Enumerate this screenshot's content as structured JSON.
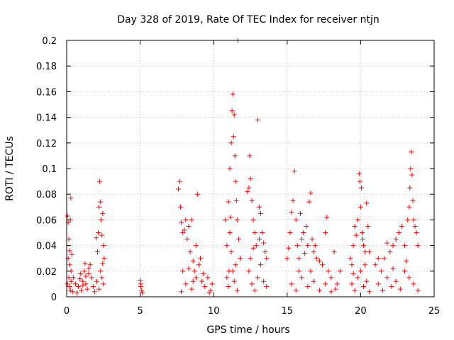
{
  "chart_data": {
    "type": "scatter",
    "title": "Day 328 of 2019, Rate Of TEC Index for receiver ntjn",
    "xlabel": "GPS time / hours",
    "ylabel": "ROTI / TECUs",
    "xlim": [
      0,
      25
    ],
    "ylim": [
      0,
      0.2
    ],
    "xticks": [
      0,
      5,
      10,
      15,
      20,
      25
    ],
    "yticks": [
      "0",
      "0.02",
      "0.04",
      "0.06",
      "0.08",
      "0.1",
      "0.12",
      "0.14",
      "0.16",
      "0.18",
      "0.2"
    ],
    "ytick_values": [
      0,
      0.02,
      0.04,
      0.06,
      0.08,
      0.1,
      0.12,
      0.14,
      0.16,
      0.18,
      0.2
    ],
    "grid": true,
    "marker": "plus",
    "color": "#ff0000",
    "series": [
      {
        "name": "ROTI",
        "points": [
          [
            0.05,
            0.063
          ],
          [
            0.1,
            0.058
          ],
          [
            0.15,
            0.045
          ],
          [
            0.2,
            0.036
          ],
          [
            0.25,
            0.06
          ],
          [
            0.3,
            0.02
          ],
          [
            0.1,
            0.03
          ],
          [
            0.15,
            0.015
          ],
          [
            0.2,
            0.008
          ],
          [
            0.25,
            0.005
          ],
          [
            0.05,
            0.01
          ],
          [
            0.3,
            0.012
          ],
          [
            0.35,
            0.033
          ],
          [
            0.28,
            0.077
          ],
          [
            0.2,
            0.025
          ],
          [
            0.4,
            0.004
          ],
          [
            0.45,
            0.015
          ],
          [
            0.6,
            0.01
          ],
          [
            0.8,
            0.008
          ],
          [
            0.9,
            0.014
          ],
          [
            1.0,
            0.005
          ],
          [
            1.1,
            0.012
          ],
          [
            1.2,
            0.02
          ],
          [
            1.3,
            0.01
          ],
          [
            1.4,
            0.006
          ],
          [
            1.5,
            0.018
          ],
          [
            1.6,
            0.025
          ],
          [
            1.7,
            0.015
          ],
          [
            1.8,
            0.008
          ],
          [
            1.9,
            0.004
          ],
          [
            1.5,
            0.022
          ],
          [
            1.3,
            0.016
          ],
          [
            1.1,
            0.009
          ],
          [
            0.7,
            0.003
          ],
          [
            0.95,
            0.018
          ],
          [
            1.25,
            0.026
          ],
          [
            2.0,
            0.046
          ],
          [
            2.1,
            0.035
          ],
          [
            2.15,
            0.05
          ],
          [
            2.2,
            0.07
          ],
          [
            2.25,
            0.09
          ],
          [
            2.3,
            0.074
          ],
          [
            2.35,
            0.06
          ],
          [
            2.4,
            0.048
          ],
          [
            2.45,
            0.065
          ],
          [
            2.5,
            0.04
          ],
          [
            2.55,
            0.03
          ],
          [
            2.3,
            0.02
          ],
          [
            2.4,
            0.015
          ],
          [
            2.5,
            0.01
          ],
          [
            2.2,
            0.006
          ],
          [
            2.45,
            0.026
          ],
          [
            2.05,
            0.012
          ],
          [
            5.0,
            0.013
          ],
          [
            5.05,
            0.008
          ],
          [
            5.1,
            0.005
          ],
          [
            5.15,
            0.003
          ],
          [
            5.05,
            0.01
          ],
          [
            7.6,
            0.084
          ],
          [
            7.7,
            0.09
          ],
          [
            7.75,
            0.07
          ],
          [
            7.8,
            0.058
          ],
          [
            7.9,
            0.05
          ],
          [
            8.0,
            0.052
          ],
          [
            8.1,
            0.06
          ],
          [
            8.2,
            0.045
          ],
          [
            8.3,
            0.055
          ],
          [
            8.4,
            0.035
          ],
          [
            8.5,
            0.06
          ],
          [
            8.6,
            0.028
          ],
          [
            8.7,
            0.02
          ],
          [
            8.8,
            0.015
          ],
          [
            8.9,
            0.08
          ],
          [
            9.0,
            0.025
          ],
          [
            9.2,
            0.012
          ],
          [
            9.4,
            0.008
          ],
          [
            9.6,
            0.015
          ],
          [
            9.8,
            0.005
          ],
          [
            9.9,
            0.01
          ],
          [
            8.1,
            0.01
          ],
          [
            8.5,
            0.006
          ],
          [
            7.8,
            0.004
          ],
          [
            9.1,
            0.03
          ],
          [
            8.8,
            0.04
          ],
          [
            7.9,
            0.02
          ],
          [
            8.3,
            0.022
          ],
          [
            9.3,
            0.018
          ],
          [
            9.7,
            0.003
          ],
          [
            8.6,
            0.012
          ],
          [
            10.8,
            0.06
          ],
          [
            10.9,
            0.04
          ],
          [
            11.0,
            0.074
          ],
          [
            11.05,
            0.02
          ],
          [
            11.1,
            0.1
          ],
          [
            11.15,
            0.062
          ],
          [
            11.2,
            0.12
          ],
          [
            11.25,
            0.145
          ],
          [
            11.3,
            0.158
          ],
          [
            11.35,
            0.125
          ],
          [
            11.4,
            0.142
          ],
          [
            11.45,
            0.11
          ],
          [
            11.5,
            0.09
          ],
          [
            11.55,
            0.075
          ],
          [
            11.6,
            0.06
          ],
          [
            11.65,
            0.2
          ],
          [
            11.7,
            0.045
          ],
          [
            11.8,
            0.03
          ],
          [
            11.3,
            0.02
          ],
          [
            11.0,
            0.008
          ],
          [
            11.4,
            0.012
          ],
          [
            11.6,
            0.005
          ],
          [
            11.2,
            0.035
          ],
          [
            11.5,
            0.025
          ],
          [
            11.1,
            0.05
          ],
          [
            10.9,
            0.015
          ],
          [
            12.3,
            0.082
          ],
          [
            12.4,
            0.085
          ],
          [
            12.45,
            0.11
          ],
          [
            12.5,
            0.092
          ],
          [
            12.6,
            0.075
          ],
          [
            12.7,
            0.06
          ],
          [
            12.8,
            0.05
          ],
          [
            12.9,
            0.04
          ],
          [
            13.0,
            0.138
          ],
          [
            13.1,
            0.07
          ],
          [
            13.2,
            0.065
          ],
          [
            13.3,
            0.05
          ],
          [
            13.4,
            0.042
          ],
          [
            13.5,
            0.035
          ],
          [
            13.6,
            0.03
          ],
          [
            12.4,
            0.02
          ],
          [
            12.6,
            0.01
          ],
          [
            12.8,
            0.005
          ],
          [
            13.0,
            0.015
          ],
          [
            13.2,
            0.025
          ],
          [
            13.4,
            0.012
          ],
          [
            13.6,
            0.008
          ],
          [
            12.5,
            0.03
          ],
          [
            13.1,
            0.045
          ],
          [
            12.7,
            0.038
          ],
          [
            15.0,
            0.03
          ],
          [
            15.1,
            0.038
          ],
          [
            15.2,
            0.05
          ],
          [
            15.3,
            0.066
          ],
          [
            15.4,
            0.075
          ],
          [
            15.5,
            0.098
          ],
          [
            15.6,
            0.06
          ],
          [
            15.7,
            0.04
          ],
          [
            15.8,
            0.03
          ],
          [
            15.9,
            0.065
          ],
          [
            16.0,
            0.045
          ],
          [
            16.1,
            0.05
          ],
          [
            16.2,
            0.034
          ],
          [
            16.3,
            0.055
          ],
          [
            16.4,
            0.04
          ],
          [
            16.5,
            0.074
          ],
          [
            16.6,
            0.081
          ],
          [
            16.7,
            0.045
          ],
          [
            16.8,
            0.035
          ],
          [
            16.9,
            0.04
          ],
          [
            17.0,
            0.03
          ],
          [
            17.2,
            0.028
          ],
          [
            17.4,
            0.025
          ],
          [
            17.6,
            0.05
          ],
          [
            17.7,
            0.062
          ],
          [
            17.8,
            0.02
          ],
          [
            18.0,
            0.015
          ],
          [
            18.2,
            0.035
          ],
          [
            18.4,
            0.01
          ],
          [
            18.6,
            0.02
          ],
          [
            15.3,
            0.01
          ],
          [
            15.6,
            0.005
          ],
          [
            16.0,
            0.015
          ],
          [
            16.4,
            0.008
          ],
          [
            16.8,
            0.012
          ],
          [
            17.2,
            0.005
          ],
          [
            17.6,
            0.01
          ],
          [
            18.0,
            0.004
          ],
          [
            18.3,
            0.006
          ],
          [
            15.8,
            0.02
          ],
          [
            16.6,
            0.02
          ],
          [
            19.3,
            0.03
          ],
          [
            19.4,
            0.025
          ],
          [
            19.5,
            0.04
          ],
          [
            19.6,
            0.055
          ],
          [
            19.7,
            0.048
          ],
          [
            19.8,
            0.06
          ],
          [
            19.9,
            0.096
          ],
          [
            19.95,
            0.09
          ],
          [
            20.0,
            0.07
          ],
          [
            20.05,
            0.085
          ],
          [
            20.1,
            0.05
          ],
          [
            20.15,
            0.045
          ],
          [
            20.2,
            0.04
          ],
          [
            20.3,
            0.035
          ],
          [
            20.4,
            0.073
          ],
          [
            20.5,
            0.055
          ],
          [
            20.6,
            0.035
          ],
          [
            19.4,
            0.01
          ],
          [
            19.6,
            0.005
          ],
          [
            19.8,
            0.015
          ],
          [
            20.0,
            0.02
          ],
          [
            20.2,
            0.008
          ],
          [
            20.4,
            0.012
          ],
          [
            20.6,
            0.004
          ],
          [
            19.5,
            0.018
          ],
          [
            20.3,
            0.025
          ],
          [
            21.0,
            0.025
          ],
          [
            21.2,
            0.03
          ],
          [
            21.4,
            0.02
          ],
          [
            21.6,
            0.03
          ],
          [
            21.8,
            0.042
          ],
          [
            22.0,
            0.035
          ],
          [
            22.2,
            0.04
          ],
          [
            22.4,
            0.045
          ],
          [
            22.6,
            0.05
          ],
          [
            22.8,
            0.055
          ],
          [
            23.0,
            0.04
          ],
          [
            23.2,
            0.06
          ],
          [
            23.3,
            0.07
          ],
          [
            23.35,
            0.085
          ],
          [
            23.4,
            0.1
          ],
          [
            23.45,
            0.113
          ],
          [
            23.5,
            0.095
          ],
          [
            23.55,
            0.075
          ],
          [
            23.6,
            0.06
          ],
          [
            23.7,
            0.055
          ],
          [
            23.8,
            0.05
          ],
          [
            23.9,
            0.04
          ],
          [
            21.2,
            0.01
          ],
          [
            21.5,
            0.005
          ],
          [
            21.8,
            0.015
          ],
          [
            22.1,
            0.008
          ],
          [
            22.4,
            0.012
          ],
          [
            22.7,
            0.006
          ],
          [
            23.0,
            0.02
          ],
          [
            23.3,
            0.015
          ],
          [
            23.6,
            0.01
          ],
          [
            23.9,
            0.005
          ],
          [
            22.2,
            0.022
          ],
          [
            23.1,
            0.028
          ]
        ]
      }
    ]
  }
}
